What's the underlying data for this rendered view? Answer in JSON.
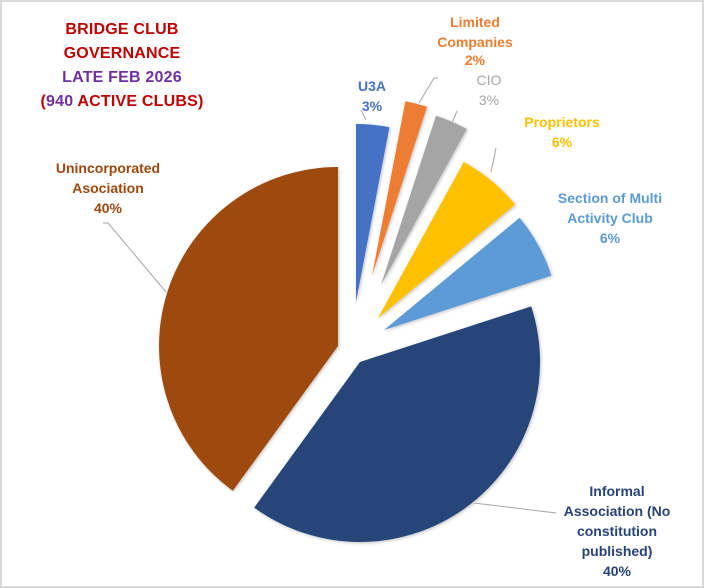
{
  "chart_data": {
    "type": "pie",
    "title": "BRIDGE  CLUB GOVERNANCE LATE FEB 2026 (940 ACTIVE CLUBS)",
    "title_lines": [
      {
        "text": "BRIDGE  CLUB",
        "color": "#c00000"
      },
      {
        "text": "GOVERNANCE",
        "color": "#c00000"
      },
      {
        "text": "LATE FEB 2026",
        "color": "#7030a0"
      }
    ],
    "title_line4": {
      "open": "(",
      "number": "940",
      "rest": " ACTIVE CLUBS)",
      "color": "#c00000",
      "number_color": "#7030a0"
    },
    "exploded": true,
    "legend": "none (data labels with leader lines)",
    "categories": [
      "U3A",
      "Limited Companies",
      "CIO",
      "Proprietors",
      "Section of Multi Activity Club",
      "Informal Association (No constitution published)",
      "Unincorporated Asociation"
    ],
    "values": [
      3,
      2,
      3,
      6,
      6,
      40,
      40
    ],
    "unit": "%",
    "colors": [
      "#4472c4",
      "#ed7d31",
      "#a5a5a5",
      "#ffc000",
      "#5b9bd5",
      "#264478",
      "#9e480e"
    ]
  },
  "labels": {
    "u3a": {
      "name": "U3A",
      "pct": "3%"
    },
    "limited": {
      "name1": "Limited",
      "name2": "Companies",
      "pct": "2%"
    },
    "cio": {
      "name": "CIO",
      "pct": "3%"
    },
    "proprietors": {
      "name": "Proprietors",
      "pct": "6%"
    },
    "section": {
      "name1": "Section of Multi",
      "name2": "Activity Club",
      "pct": "6%"
    },
    "informal": {
      "name1": "Informal",
      "name2": "Association (No",
      "name3": "constitution",
      "name4": "published)",
      "pct": "40%"
    },
    "unincorporated": {
      "name1": "Unincorporated",
      "name2": "Asociation",
      "pct": "40%"
    }
  }
}
